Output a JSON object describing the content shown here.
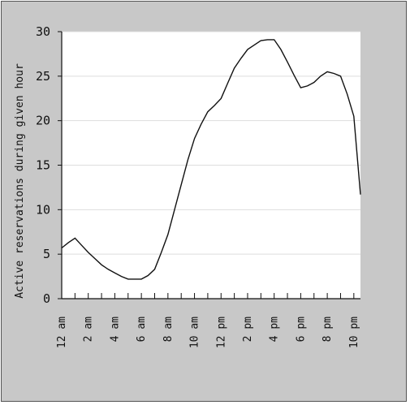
{
  "chart_data": {
    "type": "line",
    "title": "",
    "xlabel": "",
    "ylabel": "Active reservations during given hour",
    "ylim": [
      0,
      30
    ],
    "y_ticks": [
      0,
      5,
      10,
      15,
      20,
      25,
      30
    ],
    "x_tick_labels": [
      "12 am",
      "2 am",
      "4 am",
      "6 am",
      "8 am",
      "10 am",
      "12 pm",
      "2 pm",
      "4 pm",
      "6 pm",
      "8 pm",
      "10 pm"
    ],
    "x": [
      0,
      0.5,
      1,
      1.5,
      2,
      2.5,
      3,
      3.5,
      4,
      4.5,
      5,
      5.5,
      6,
      6.5,
      7,
      7.5,
      8,
      8.5,
      9,
      9.5,
      10,
      10.5,
      11,
      11.5,
      12,
      12.5,
      13,
      13.5,
      14,
      14.5,
      15,
      15.5,
      16,
      16.5,
      17,
      17.5,
      18,
      18.5,
      19,
      19.5,
      20,
      20.5,
      21,
      21.5,
      22,
      22.5
    ],
    "series": [
      {
        "values": [
          5.7,
          6.3,
          6.8,
          6.0,
          5.2,
          4.5,
          3.8,
          3.3,
          2.9,
          2.5,
          2.2,
          2.2,
          2.2,
          2.6,
          3.3,
          5.2,
          7.2,
          10.0,
          12.8,
          15.6,
          18.0,
          19.6,
          21.0,
          21.7,
          22.5,
          24.2,
          25.9,
          27.0,
          28.0,
          28.5,
          29.0,
          29.1,
          29.1,
          28.0,
          26.6,
          25.1,
          23.7,
          23.9,
          24.3,
          25.0,
          25.5,
          25.3,
          25.0,
          23.0,
          20.5,
          11.7
        ]
      }
    ],
    "legend": "none",
    "grid": "horizontal",
    "line_color": "#111111",
    "plot_background": "#ffffff",
    "frame_background": "#c8c8c8"
  }
}
